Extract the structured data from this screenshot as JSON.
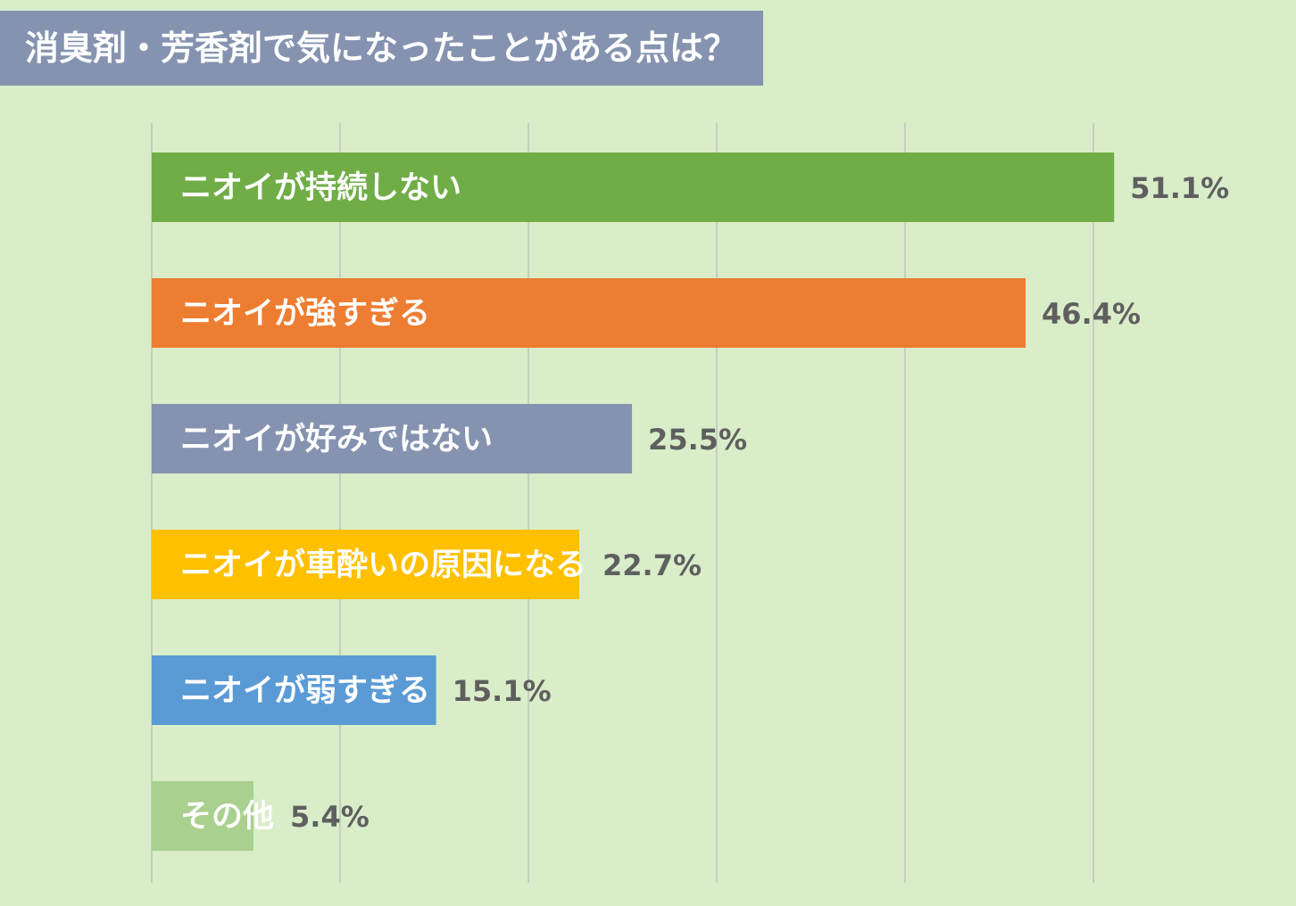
{
  "chart_data": {
    "type": "bar",
    "orientation": "horizontal",
    "title": "消臭剤・芳香剤で気になったことがある点は？",
    "categories": [
      "ニオイが持続しない",
      "ニオイが強すぎる",
      "ニオイが好みではない",
      "ニオイが車酔いの原因になる",
      "ニオイが弱すぎる",
      "その他"
    ],
    "values": [
      51.1,
      46.4,
      25.5,
      22.7,
      15.1,
      5.4
    ],
    "value_labels": [
      "51.1%",
      "46.4%",
      "25.5%",
      "22.7%",
      "15.1%",
      "5.4%"
    ],
    "colors": [
      "#70ad47",
      "#ed7d31",
      "#8593b0",
      "#ffc000",
      "#5b9bd5",
      "#a9d08e"
    ],
    "xlim": [
      0,
      50
    ],
    "grid": true,
    "legend": "none",
    "xlabel": "",
    "ylabel": ""
  }
}
